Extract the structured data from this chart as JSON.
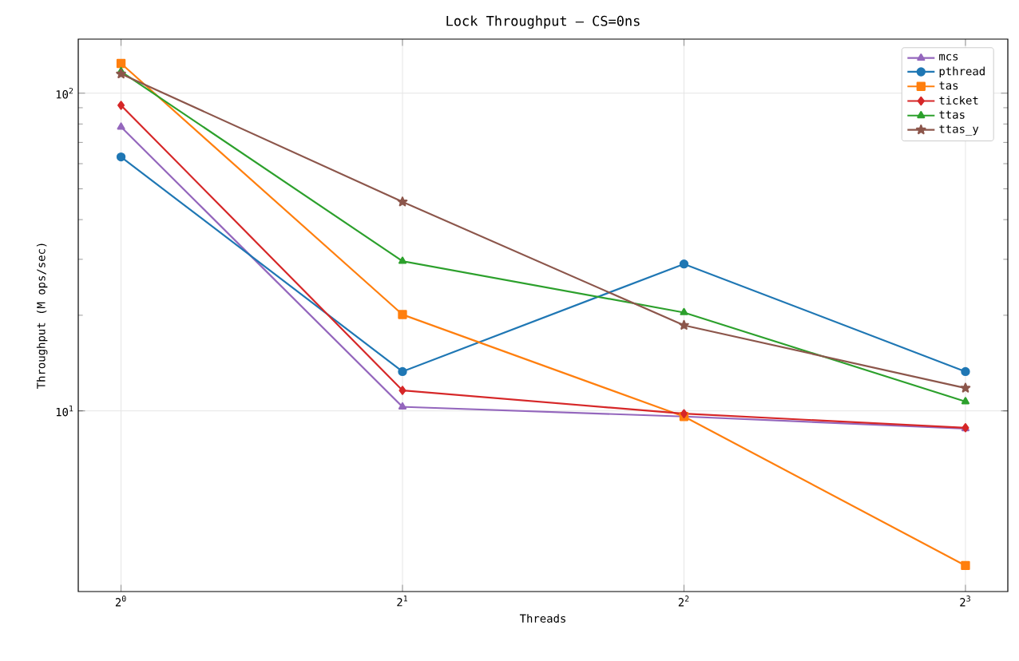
{
  "chart_data": {
    "type": "line",
    "title": "Lock Throughput — CS=0ns",
    "xlabel": "Threads",
    "ylabel": "Throughput (M ops/sec)",
    "x": [
      1,
      2,
      4,
      8
    ],
    "log": "xy",
    "grid": true,
    "legend": "top right",
    "line_style": "solid",
    "xlim": [
      0.9,
      8.88
    ],
    "ylim": [
      2.7,
      148
    ],
    "xticks": [
      {
        "value": 1,
        "label": "2$^{0}$"
      },
      {
        "value": 2,
        "label": "2$^{1}$"
      },
      {
        "value": 4,
        "label": "2$^{2}$"
      },
      {
        "value": 8,
        "label": "2$^{3}$"
      }
    ],
    "yticks": [
      {
        "value": 10,
        "label": "10$^{1}$"
      },
      {
        "value": 100,
        "label": "10$^{2}$"
      }
    ],
    "series": [
      {
        "name": "mcs",
        "color": "#9467bd",
        "marker": "triangle",
        "values": [
          78.3,
          10.3,
          9.6,
          8.8
        ]
      },
      {
        "name": "pthread",
        "color": "#1f77b4",
        "marker": "circle",
        "values": [
          63,
          13.3,
          29,
          13.3
        ]
      },
      {
        "name": "tas",
        "color": "#ff7f0e",
        "marker": "square",
        "values": [
          124,
          20.1,
          9.6,
          3.26
        ]
      },
      {
        "name": "ticket",
        "color": "#d62728",
        "marker": "diamond",
        "values": [
          91.6,
          11.6,
          9.8,
          8.85
        ]
      },
      {
        "name": "ttas",
        "color": "#2ca02c",
        "marker": "triangle",
        "values": [
          117,
          29.6,
          20.4,
          10.7
        ]
      },
      {
        "name": "ttas_y",
        "color": "#8c564b",
        "marker": "star",
        "values": [
          115,
          45.5,
          18.6,
          11.8
        ]
      }
    ]
  }
}
